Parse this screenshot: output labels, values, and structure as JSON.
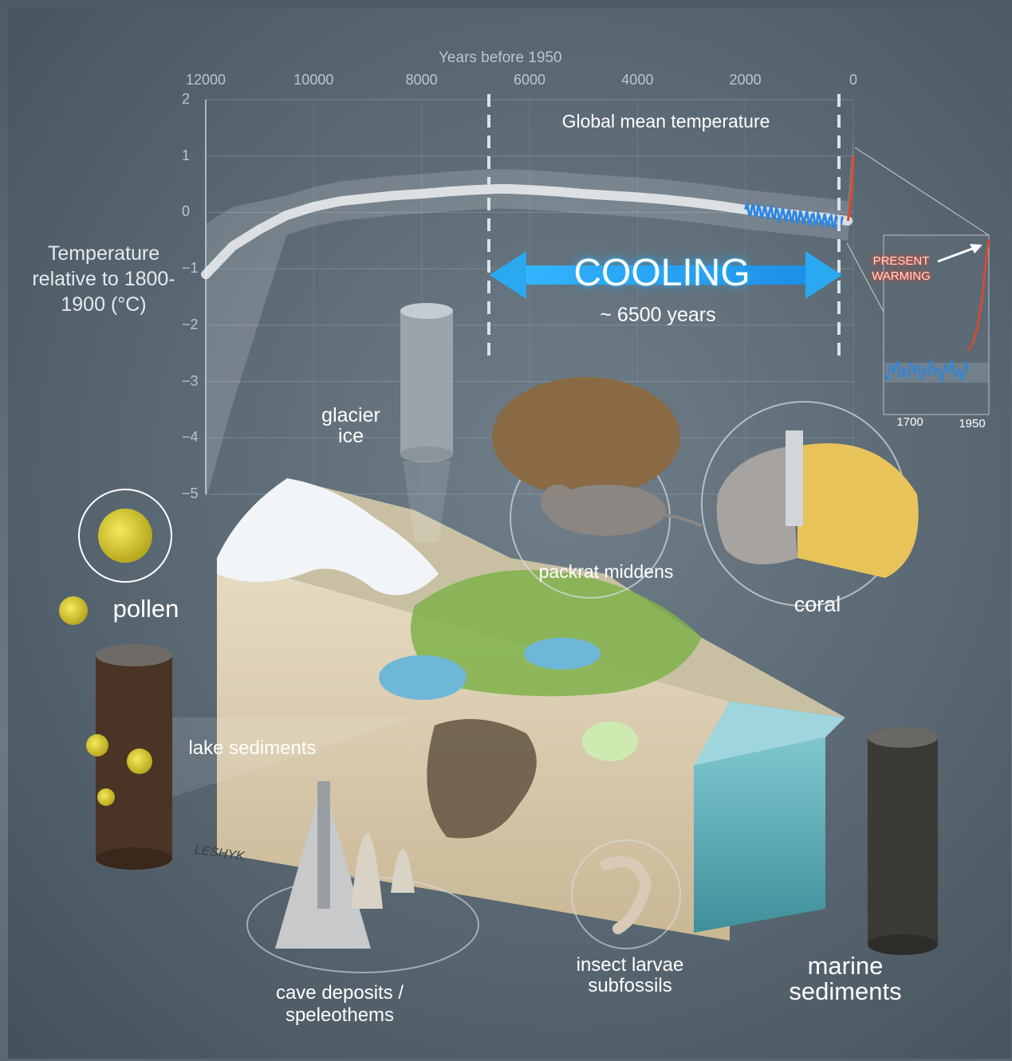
{
  "chart_data": {
    "type": "line",
    "title": "Global mean temperature",
    "xlabel": "Years before 1950",
    "ylabel": "Temperature relative to 1800-1900 (°C)",
    "x_ticks": [
      "12000",
      "10000",
      "8000",
      "6000",
      "4000",
      "2000",
      "0"
    ],
    "y_ticks": [
      "2",
      "1",
      "0",
      "−1",
      "−2",
      "−3",
      "−4",
      "−5"
    ],
    "xlim": [
      12000,
      0
    ],
    "ylim": [
      -5,
      2
    ],
    "series": [
      {
        "x": [
          12000,
          11500,
          11000,
          10500,
          10000,
          9500,
          9000,
          8500,
          8000,
          7500,
          7000,
          6500,
          6000,
          5500,
          5000,
          4500,
          4000,
          3500,
          3000,
          2500,
          2000,
          1500,
          1000,
          500,
          100,
          0
        ],
        "values": [
          -1.1,
          -0.6,
          -0.3,
          -0.05,
          0.1,
          0.2,
          0.25,
          0.3,
          0.33,
          0.37,
          0.4,
          0.42,
          0.4,
          0.37,
          0.33,
          0.3,
          0.27,
          0.23,
          0.18,
          0.12,
          0.05,
          0.0,
          -0.05,
          -0.1,
          -0.15,
          1.0
        ]
      }
    ],
    "annotation": {
      "cooling": "COOLING",
      "cooling_duration": "~ 6500 years"
    },
    "inset": {
      "x_ticks": [
        "1700",
        "1950"
      ],
      "label": "PRESENT WARMING"
    }
  },
  "labels": {
    "glacier": "glacier ice",
    "packrat": "packrat middens",
    "coral": "coral",
    "pollen": "pollen",
    "lake": "lake sediments",
    "cave": "cave deposits / speleothems",
    "insect": "insect larvae subfossils",
    "marine": "marine sediments",
    "signature": "LESHYK"
  },
  "colors": {
    "warming": "#e8452a",
    "cooling_arrow": "#2aa8f0",
    "proxy_blue": "#2f86e0"
  }
}
